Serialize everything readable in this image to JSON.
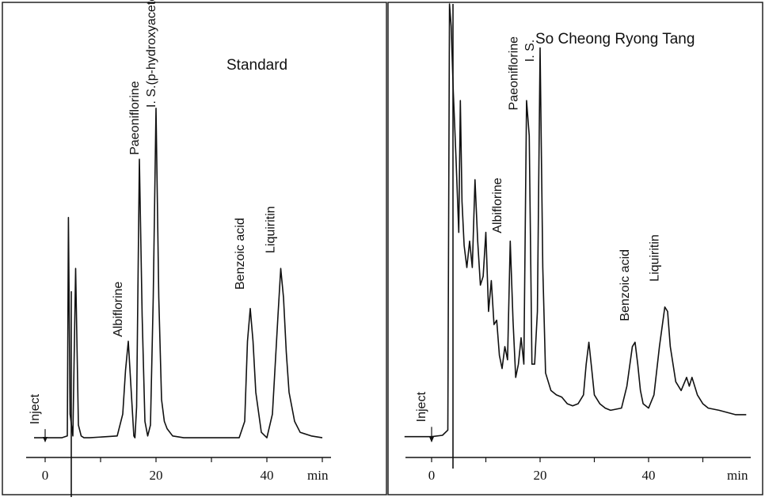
{
  "chart_data": [
    {
      "type": "line",
      "title": "Standard",
      "x_unit": "min",
      "xlim": [
        -4,
        53
      ],
      "x_ticks": [
        0,
        20,
        40
      ],
      "ylim": [
        0,
        100
      ],
      "y_axis_shown": false,
      "grid": false,
      "annotations": [
        {
          "text": "Inject",
          "x": 0,
          "y": 3,
          "arrow": true
        },
        {
          "text": "Albiflorine",
          "x": 15,
          "y": 27
        },
        {
          "text": "Paeoniflorine",
          "x": 18,
          "y": 77
        },
        {
          "text": "I. S.(p-hydroxyacetophenone)",
          "x": 21,
          "y": 90
        },
        {
          "text": "Benzoic acid",
          "x": 37,
          "y": 40
        },
        {
          "text": "Liquiritin",
          "x": 42.5,
          "y": 50
        }
      ],
      "series": [
        {
          "x": [
            -2,
            0,
            3,
            4,
            4.2,
            4.5,
            5,
            5.5,
            6,
            6.5,
            7,
            8,
            13,
            14,
            14.5,
            15,
            15.5,
            16,
            16.2,
            16.5,
            17,
            17.5,
            18,
            18.5,
            19,
            19.5,
            20,
            20.5,
            21,
            21.5,
            22,
            23,
            25,
            30,
            35,
            36,
            36.5,
            37,
            37.5,
            38,
            39,
            40,
            41,
            42,
            42.5,
            43,
            43.5,
            44,
            45,
            46,
            48,
            50
          ],
          "y": [
            1.5,
            1.5,
            1.5,
            2,
            62,
            8,
            2,
            48,
            5,
            2,
            1.5,
            1.5,
            2,
            8,
            20,
            28,
            15,
            2,
            1.5,
            10,
            78,
            35,
            6,
            2,
            5,
            40,
            92,
            40,
            12,
            6,
            4,
            2,
            1.5,
            1.5,
            1.5,
            6,
            28,
            37,
            28,
            14,
            3,
            1.5,
            8,
            35,
            48,
            40,
            25,
            14,
            6,
            3,
            2,
            1.5
          ]
        }
      ]
    },
    {
      "type": "line",
      "title": "So Cheong Ryong Tang",
      "x_unit": "min",
      "xlim": [
        -5,
        59
      ],
      "x_ticks": [
        0,
        20,
        40
      ],
      "ylim": [
        0,
        100
      ],
      "y_axis_shown": false,
      "grid": false,
      "annotations": [
        {
          "text": "Inject",
          "x": 0,
          "y": 3,
          "arrow": true
        },
        {
          "text": "Albiflorine",
          "x": 14,
          "y": 46
        },
        {
          "text": "Paeoniflorine",
          "x": 17,
          "y": 74
        },
        {
          "text": "I. S.",
          "x": 20,
          "y": 85
        },
        {
          "text": "Benzoic acid",
          "x": 37.5,
          "y": 26
        },
        {
          "text": "Liquiritin",
          "x": 43,
          "y": 35
        }
      ],
      "series": [
        {
          "x": [
            -5,
            0,
            2,
            3,
            3.3,
            3.6,
            4,
            4.5,
            5,
            5.3,
            5.6,
            6,
            6.5,
            7,
            7.5,
            8,
            8.5,
            9,
            9.5,
            10,
            10.5,
            11,
            11.5,
            12,
            12.5,
            13,
            13.5,
            14,
            14.5,
            15,
            15.5,
            16,
            16.5,
            17,
            17.5,
            18,
            18.5,
            19,
            19.5,
            20,
            20.5,
            21,
            21.5,
            22,
            23,
            24,
            25,
            26,
            27,
            28,
            28.5,
            29,
            29.5,
            30,
            31,
            32,
            33,
            35,
            36,
            37,
            37.5,
            38,
            38.5,
            39,
            40,
            41,
            42,
            43,
            43.5,
            44,
            45,
            46,
            47,
            47.5,
            48,
            49,
            50,
            51,
            53,
            56,
            58
          ],
          "y": [
            1.5,
            1.5,
            1.8,
            3,
            100,
            95,
            80,
            65,
            48,
            78,
            55,
            45,
            40,
            46,
            40,
            60,
            46,
            36,
            38,
            48,
            30,
            37,
            27,
            28,
            20,
            17,
            22,
            19,
            46,
            28,
            15,
            18,
            24,
            18,
            78,
            70,
            18,
            18,
            30,
            90,
            40,
            16,
            14,
            12,
            11,
            10.5,
            9,
            8.5,
            9,
            11,
            18,
            23,
            17,
            11,
            9,
            8,
            7.5,
            8,
            13,
            22,
            23,
            18,
            12,
            9,
            8,
            11,
            22,
            31,
            30,
            22,
            14,
            12,
            15,
            13,
            15,
            11,
            9,
            8,
            7.5,
            6.5,
            6.5
          ]
        }
      ]
    }
  ]
}
